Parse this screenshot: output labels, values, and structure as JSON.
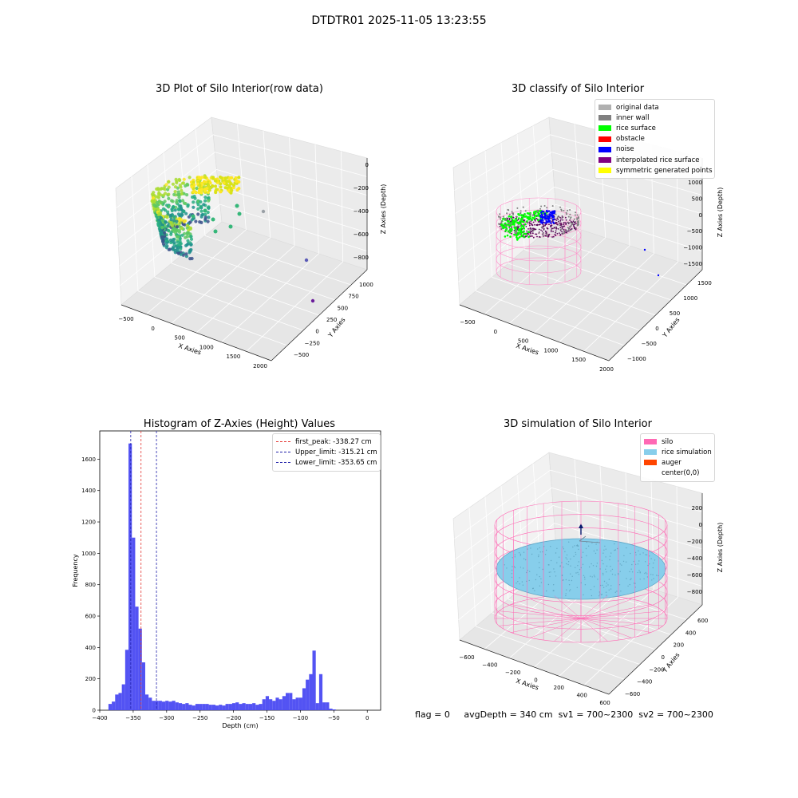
{
  "figure_title": "DTDTR01 2025-11-05 13:23:55",
  "footer": {
    "flag": "flag = 0",
    "avg_depth": "avgDepth = 340 cm",
    "sv1": "sv1 = 700~2300",
    "sv2": "sv2 = 700~2300"
  },
  "colors": {
    "hist_bar": "#4a4af2",
    "first_peak": "#e53935",
    "limits": "#2222aa",
    "silo": "#ff69b4",
    "rice_simulation": "#87ceeb",
    "auger": "#ff4500"
  },
  "chart_data": [
    {
      "type": "scatter",
      "projection": "3d",
      "title": "3D Plot of Silo Interior(row data)",
      "xlabel": "X Axies",
      "ylabel": "Y Axies",
      "zlabel": "Z Axies (Depth)",
      "x_ticks": [
        "−500",
        "0",
        "500",
        "1000",
        "1500",
        "2000"
      ],
      "y_ticks": [
        "−500",
        "−250",
        "0",
        "250",
        "500",
        "750",
        "1000"
      ],
      "z_ticks": [
        "−800",
        "−600",
        "−400",
        "−200",
        "0"
      ],
      "colormap": "viridis"
    },
    {
      "type": "scatter",
      "projection": "3d",
      "title": "3D classify of Silo Interior",
      "xlabel": "X Axies",
      "ylabel": "Y Axies",
      "zlabel": "Z Axies (Depth)",
      "x_ticks": [
        "−500",
        "0",
        "500",
        "1000",
        "1500",
        "2000"
      ],
      "y_ticks": [
        "−1000",
        "−500",
        "0",
        "500",
        "1000",
        "1500"
      ],
      "z_ticks": [
        "−1500",
        "−1000",
        "−500",
        "0",
        "500",
        "1000"
      ],
      "legend": [
        {
          "label": "original data",
          "color": "#b0b0b0"
        },
        {
          "label": "inner wall",
          "color": "#808080"
        },
        {
          "label": "rice surface",
          "color": "#00ff00"
        },
        {
          "label": "obstacle",
          "color": "#ff0000"
        },
        {
          "label": "noise",
          "color": "#0000ff"
        },
        {
          "label": "interpolated rice surface",
          "color": "#800080"
        },
        {
          "label": "symmetric generated points",
          "color": "#ffff00"
        }
      ]
    },
    {
      "type": "bar",
      "title": "Histogram of Z-Axies (Height) Values",
      "xlabel": "Depth (cm)",
      "ylabel": "Frequency",
      "xlim": [
        -400,
        20
      ],
      "ylim": [
        0,
        1780
      ],
      "x_ticks": [
        "−400",
        "−350",
        "−300",
        "−250",
        "−200",
        "−150",
        "−100",
        "−50",
        "0"
      ],
      "y_ticks": [
        "0",
        "200",
        "400",
        "600",
        "800",
        "1000",
        "1200",
        "1400",
        "1600"
      ],
      "bin_width": 5,
      "bin_starts": [
        -387,
        -382,
        -377,
        -372,
        -367,
        -362,
        -357,
        -352,
        -347,
        -342,
        -337,
        -332,
        -327,
        -322,
        -317,
        -312,
        -307,
        -302,
        -297,
        -292,
        -287,
        -282,
        -277,
        -272,
        -267,
        -262,
        -257,
        -252,
        -247,
        -242,
        -237,
        -232,
        -227,
        -222,
        -217,
        -212,
        -207,
        -202,
        -197,
        -192,
        -187,
        -182,
        -177,
        -172,
        -167,
        -162,
        -157,
        -152,
        -147,
        -142,
        -137,
        -132,
        -127,
        -122,
        -117,
        -112,
        -107,
        -102,
        -97,
        -92,
        -87,
        -82,
        -77,
        -72,
        -67,
        -62,
        -57,
        -52,
        -47,
        -42,
        -37,
        -32,
        -27,
        -22,
        -17,
        -12,
        -7,
        -2
      ],
      "values": [
        40,
        55,
        100,
        110,
        165,
        385,
        1700,
        1100,
        660,
        520,
        305,
        100,
        80,
        60,
        60,
        60,
        55,
        60,
        55,
        60,
        50,
        45,
        40,
        45,
        35,
        30,
        40,
        40,
        40,
        40,
        35,
        35,
        30,
        35,
        30,
        40,
        40,
        45,
        50,
        40,
        45,
        40,
        40,
        45,
        35,
        40,
        70,
        90,
        70,
        60,
        80,
        70,
        90,
        110,
        110,
        70,
        80,
        80,
        140,
        195,
        230,
        380,
        45,
        230,
        50,
        50,
        10,
        5,
        0,
        0,
        0,
        0,
        0,
        0,
        0,
        0,
        0,
        0
      ],
      "vlines": [
        {
          "label": "first_peak: -338.27 cm",
          "x": -338.27,
          "color": "#e53935"
        },
        {
          "label": "Upper_limit: -315.21 cm",
          "x": -315.21,
          "color": "#2222aa"
        },
        {
          "label": "Lower_limit: -353.65 cm",
          "x": -353.65,
          "color": "#2222aa"
        }
      ]
    },
    {
      "type": "scatter",
      "projection": "3d",
      "title": "3D simulation of Silo Interior",
      "xlabel": "X Axies",
      "ylabel": "Y Axies",
      "zlabel": "Z Axies (Depth)",
      "x_ticks": [
        "−600",
        "−400",
        "−200",
        "0",
        "200",
        "400",
        "600"
      ],
      "y_ticks": [
        "−600",
        "−400",
        "−200",
        "0",
        "200",
        "400",
        "600"
      ],
      "z_ticks": [
        "−800",
        "−600",
        "−400",
        "−200",
        "0",
        "200"
      ],
      "legend": [
        {
          "label": "silo",
          "color": "#ff69b4"
        },
        {
          "label": "rice simulation",
          "color": "#87ceeb"
        },
        {
          "label": "auger",
          "color": "#ff4500"
        },
        {
          "label": "center(0,0)",
          "color": ""
        }
      ]
    }
  ]
}
